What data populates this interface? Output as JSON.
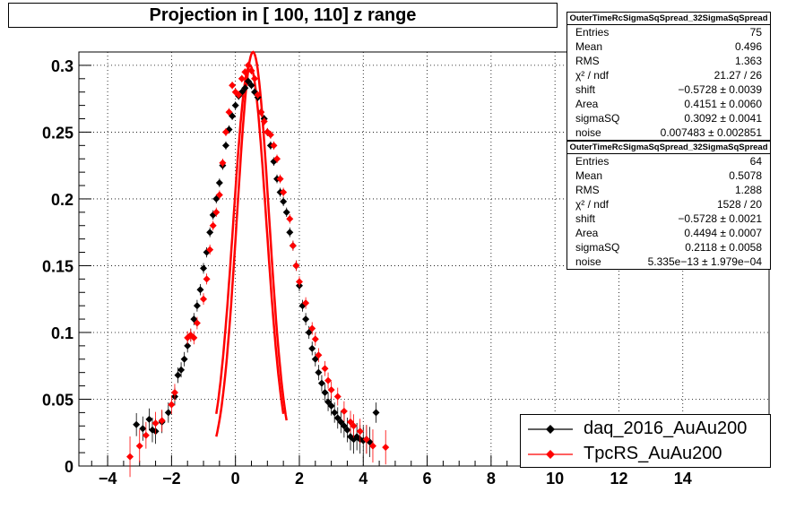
{
  "chart_data": {
    "type": "scatter",
    "title": "Projection in [ 100, 110] z range",
    "xlabel": "",
    "ylabel": "",
    "xlim": [
      -4.9,
      16.7
    ],
    "ylim": [
      0,
      0.31
    ],
    "xticks": [
      -4,
      -2,
      0,
      2,
      4,
      6,
      8,
      10,
      12,
      14
    ],
    "yticks": [
      0,
      0.05,
      0.1,
      0.15,
      0.2,
      0.25,
      0.3
    ],
    "ytick_labels": [
      "0",
      "0.05",
      "0.1",
      "0.15",
      "0.2",
      "0.25",
      "0.3"
    ],
    "grid": true,
    "legend_position": "bottom-right",
    "series": [
      {
        "name": "daq_2016_AuAu200",
        "color": "#000000",
        "marker": "diamond",
        "x": [
          -3.1,
          -2.9,
          -2.7,
          -2.6,
          -2.5,
          -2.3,
          -2.1,
          -1.9,
          -1.8,
          -1.7,
          -1.6,
          -1.5,
          -1.4,
          -1.3,
          -1.2,
          -1.1,
          -1.0,
          -0.9,
          -0.8,
          -0.7,
          -0.6,
          -0.5,
          -0.4,
          -0.3,
          -0.2,
          -0.1,
          0.0,
          0.1,
          0.2,
          0.3,
          0.4,
          0.5,
          0.6,
          0.7,
          0.8,
          0.9,
          1.0,
          1.1,
          1.2,
          1.3,
          1.4,
          1.5,
          1.6,
          1.7,
          1.8,
          1.9,
          2.0,
          2.1,
          2.2,
          2.3,
          2.4,
          2.5,
          2.6,
          2.7,
          2.8,
          2.9,
          3.0,
          3.1,
          3.2,
          3.3,
          3.4,
          3.5,
          3.6,
          3.7,
          3.8,
          3.9,
          4.0,
          4.1,
          4.2,
          4.4
        ],
        "y": [
          0.031,
          0.028,
          0.035,
          0.027,
          0.026,
          0.033,
          0.04,
          0.052,
          0.068,
          0.072,
          0.08,
          0.09,
          0.098,
          0.11,
          0.12,
          0.132,
          0.148,
          0.16,
          0.175,
          0.188,
          0.2,
          0.212,
          0.225,
          0.24,
          0.252,
          0.262,
          0.27,
          0.277,
          0.28,
          0.283,
          0.288,
          0.285,
          0.28,
          0.276,
          0.265,
          0.26,
          0.25,
          0.24,
          0.228,
          0.215,
          0.205,
          0.198,
          0.19,
          0.175,
          0.165,
          0.15,
          0.135,
          0.12,
          0.11,
          0.1,
          0.088,
          0.08,
          0.07,
          0.062,
          0.055,
          0.048,
          0.045,
          0.04,
          0.036,
          0.033,
          0.03,
          0.027,
          0.022,
          0.02,
          0.022,
          0.02,
          0.019,
          0.02,
          0.018,
          0.04
        ]
      },
      {
        "name": "TpcRS_AuAu200",
        "color": "#ff0000",
        "marker": "diamond",
        "x": [
          -3.3,
          -3.0,
          -2.8,
          -2.5,
          -2.3,
          -2.0,
          -1.9,
          -1.5,
          -1.4,
          -1.3,
          -1.2,
          -1.0,
          -0.9,
          -0.8,
          -0.7,
          -0.6,
          -0.5,
          -0.4,
          -0.3,
          -0.2,
          -0.1,
          0.0,
          0.1,
          0.2,
          0.3,
          0.4,
          0.5,
          0.6,
          0.7,
          0.8,
          0.9,
          1.0,
          1.1,
          1.2,
          1.3,
          1.4,
          1.5,
          1.7,
          1.8,
          1.9,
          2.0,
          2.2,
          2.4,
          2.5,
          2.6,
          2.8,
          2.9,
          3.0,
          3.2,
          3.4,
          3.6,
          3.7,
          3.9,
          4.1,
          4.3,
          4.7
        ],
        "y": [
          0.007,
          0.015,
          0.023,
          0.032,
          0.034,
          0.046,
          0.055,
          0.096,
          0.098,
          0.096,
          0.107,
          0.125,
          0.14,
          0.162,
          0.18,
          0.19,
          0.203,
          0.227,
          0.25,
          0.265,
          0.285,
          0.28,
          0.278,
          0.29,
          0.295,
          0.3,
          0.296,
          0.29,
          0.278,
          0.265,
          0.258,
          0.25,
          0.248,
          0.24,
          0.23,
          0.215,
          0.205,
          0.185,
          0.165,
          0.15,
          0.138,
          0.122,
          0.103,
          0.095,
          0.083,
          0.073,
          0.064,
          0.057,
          0.052,
          0.041,
          0.033,
          0.03,
          0.026,
          0.02,
          0.015,
          0.014
        ]
      }
    ],
    "fits": [
      {
        "series": "TpcRS_AuAu200",
        "color": "#ff0000",
        "x_range": [
          -0.6,
          1.6
        ],
        "peak_x": 0.55,
        "peak_y": 0.31,
        "sigma": 0.5
      },
      {
        "series": "TpcRS_AuAu200",
        "color": "#ff0000",
        "x_range": [
          -0.6,
          1.5
        ],
        "peak_x": 0.45,
        "peak_y": 0.3,
        "sigma": 0.52
      }
    ]
  },
  "stats_boxes": [
    {
      "title": "OuterTimeRcSigmaSqSpread_32SigmaSqSpread",
      "rows": [
        {
          "label": "Entries",
          "value": "75"
        },
        {
          "label": "Mean",
          "value": "0.496"
        },
        {
          "label": "RMS",
          "value": "1.363"
        },
        {
          "label": "χ² / ndf",
          "value": "21.27 / 26"
        },
        {
          "label": "shift",
          "value": "−0.5728 ± 0.0039"
        },
        {
          "label": "Area",
          "value": "0.4151 ± 0.0060"
        },
        {
          "label": "sigmaSQ",
          "value": "0.3092 ± 0.0041"
        },
        {
          "label": "noise",
          "value": "0.007483 ± 0.002851"
        }
      ]
    },
    {
      "title": "OuterTimeRcSigmaSqSpread_32SigmaSqSpread",
      "rows": [
        {
          "label": "Entries",
          "value": "64"
        },
        {
          "label": "Mean",
          "value": "0.5078"
        },
        {
          "label": "RMS",
          "value": "1.288"
        },
        {
          "label": "χ² / ndf",
          "value": "1528 / 20"
        },
        {
          "label": "shift",
          "value": "−0.5728 ± 0.0021"
        },
        {
          "label": "Area",
          "value": "0.4494 ± 0.0007"
        },
        {
          "label": "sigmaSQ",
          "value": "0.2118 ± 0.0058"
        },
        {
          "label": "noise",
          "value": "5.335e−13 ± 1.979e−04"
        }
      ]
    }
  ],
  "legend": {
    "entries": [
      {
        "label": "daq_2016_AuAu200",
        "color": "#000000"
      },
      {
        "label": "TpcRS_AuAu200",
        "color": "#ff0000"
      }
    ]
  }
}
